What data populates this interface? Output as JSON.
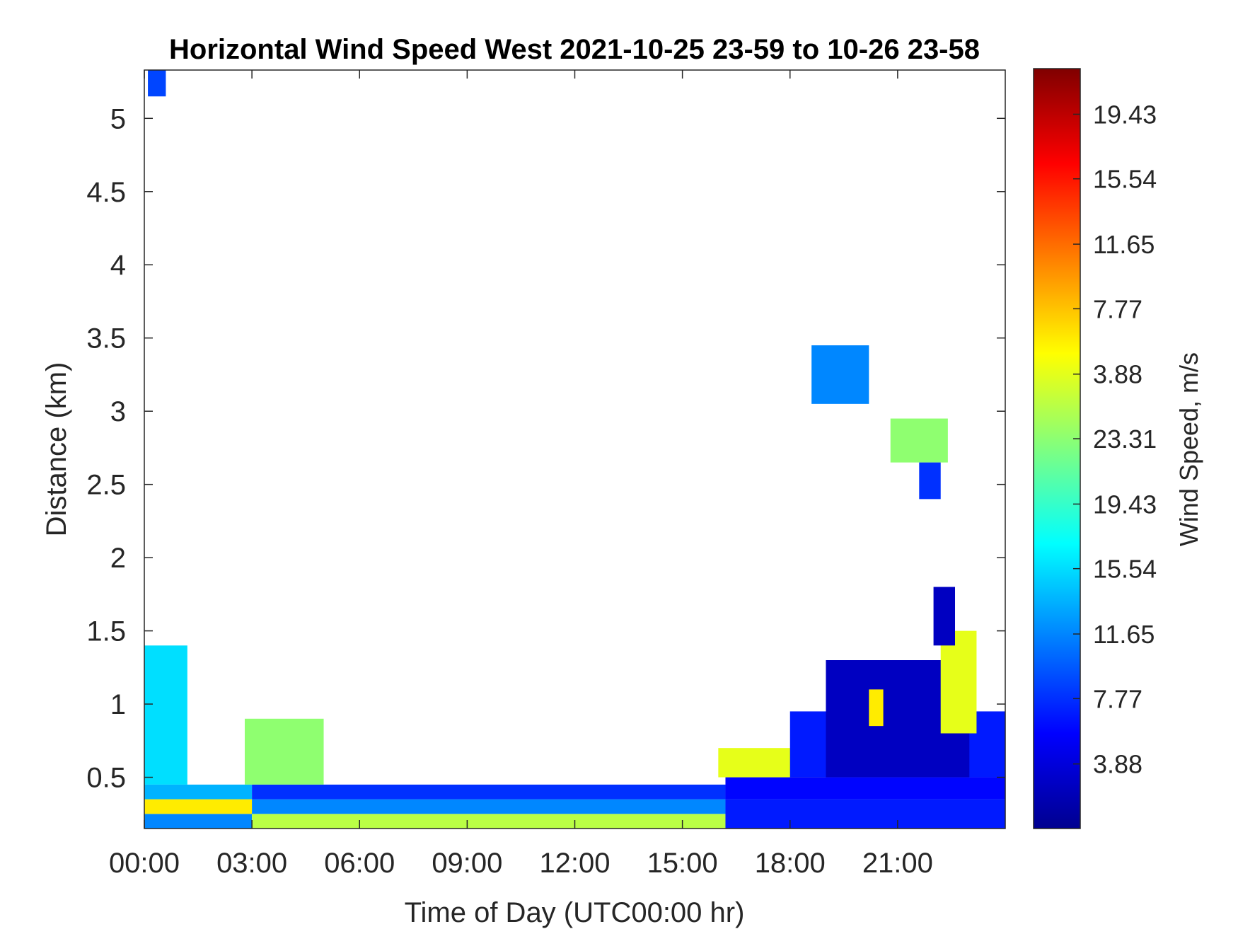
{
  "chart_data": {
    "type": "heatmap",
    "title": "Horizontal Wind Speed West 2021-10-25 23-59 to 10-26 23-58",
    "xlabel": "Time of Day (UTC00:00 hr)",
    "ylabel": "Distance (km)",
    "colorbar_label": "Wind Speed, m/s",
    "xlim": [
      0,
      24
    ],
    "ylim": [
      0.15,
      5.33
    ],
    "x_ticks": [
      {
        "value": 0,
        "label": "00:00"
      },
      {
        "value": 3,
        "label": "03:00"
      },
      {
        "value": 6,
        "label": "06:00"
      },
      {
        "value": 9,
        "label": "09:00"
      },
      {
        "value": 12,
        "label": "12:00"
      },
      {
        "value": 15,
        "label": "15:00"
      },
      {
        "value": 18,
        "label": "18:00"
      },
      {
        "value": 21,
        "label": "21:00"
      }
    ],
    "y_ticks": [
      {
        "value": 0.5,
        "label": "0.5"
      },
      {
        "value": 1.0,
        "label": "1"
      },
      {
        "value": 1.5,
        "label": "1.5"
      },
      {
        "value": 2.0,
        "label": "2"
      },
      {
        "value": 2.5,
        "label": "2.5"
      },
      {
        "value": 3.0,
        "label": "3"
      },
      {
        "value": 3.5,
        "label": "3.5"
      },
      {
        "value": 4.0,
        "label": "4"
      },
      {
        "value": 4.5,
        "label": "4.5"
      },
      {
        "value": 5.0,
        "label": "5"
      }
    ],
    "colorbar_ticks": [
      {
        "frac": 0.085,
        "label": "3.88"
      },
      {
        "frac": 0.171,
        "label": "7.77"
      },
      {
        "frac": 0.256,
        "label": "11.65"
      },
      {
        "frac": 0.342,
        "label": "15.54"
      },
      {
        "frac": 0.427,
        "label": "19.43"
      },
      {
        "frac": 0.513,
        "label": "23.31"
      },
      {
        "frac": 0.598,
        "label": "3.88"
      },
      {
        "frac": 0.684,
        "label": "7.77"
      },
      {
        "frac": 0.769,
        "label": "11.65"
      },
      {
        "frac": 0.855,
        "label": "15.54"
      },
      {
        "frac": 0.94,
        "label": "19.43"
      }
    ],
    "colormap": "jet",
    "color_scale": [
      0,
      23.31
    ],
    "grid": false,
    "note_on_values": "z = approximate wind speed in m/s estimated from colour",
    "regions": [
      {
        "x": [
          0.0,
          3.0
        ],
        "y": [
          0.15,
          0.25
        ],
        "z": 6
      },
      {
        "x": [
          0.0,
          3.0
        ],
        "y": [
          0.25,
          0.35
        ],
        "z": 15
      },
      {
        "x": [
          0.0,
          3.0
        ],
        "y": [
          0.35,
          0.45
        ],
        "z": 7
      },
      {
        "x": [
          0.0,
          1.2
        ],
        "y": [
          0.45,
          1.4
        ],
        "z": 8
      },
      {
        "x": [
          3.0,
          16.2
        ],
        "y": [
          0.15,
          0.25
        ],
        "z": 13
      },
      {
        "x": [
          3.0,
          16.2
        ],
        "y": [
          0.25,
          0.35
        ],
        "z": 6
      },
      {
        "x": [
          3.0,
          16.2
        ],
        "y": [
          0.35,
          0.45
        ],
        "z": 4
      },
      {
        "x": [
          2.8,
          5.0
        ],
        "y": [
          0.45,
          0.9
        ],
        "z": 12
      },
      {
        "x": [
          16.2,
          24.0
        ],
        "y": [
          0.15,
          0.35
        ],
        "z": 3.5
      },
      {
        "x": [
          16.2,
          24.0
        ],
        "y": [
          0.35,
          0.5
        ],
        "z": 3
      },
      {
        "x": [
          16.0,
          19.0
        ],
        "y": [
          0.5,
          0.7
        ],
        "z": 14
      },
      {
        "x": [
          18.0,
          24.0
        ],
        "y": [
          0.5,
          0.95
        ],
        "z": 3.5
      },
      {
        "x": [
          19.0,
          23.0
        ],
        "y": [
          0.5,
          1.3
        ],
        "z": 1.5
      },
      {
        "x": [
          20.2,
          20.6
        ],
        "y": [
          0.85,
          1.1
        ],
        "z": 15
      },
      {
        "x": [
          22.2,
          23.2
        ],
        "y": [
          0.8,
          1.5
        ],
        "z": 14
      },
      {
        "x": [
          22.0,
          22.6
        ],
        "y": [
          1.4,
          1.8
        ],
        "z": 1.5
      },
      {
        "x": [
          18.6,
          20.2
        ],
        "y": [
          3.05,
          3.45
        ],
        "z": 6
      },
      {
        "x": [
          20.8,
          22.4
        ],
        "y": [
          2.65,
          2.95
        ],
        "z": 12
      },
      {
        "x": [
          21.6,
          22.2
        ],
        "y": [
          2.4,
          2.65
        ],
        "z": 4
      },
      {
        "x": [
          0.1,
          0.6
        ],
        "y": [
          5.15,
          5.33
        ],
        "z": 4.5
      }
    ]
  }
}
